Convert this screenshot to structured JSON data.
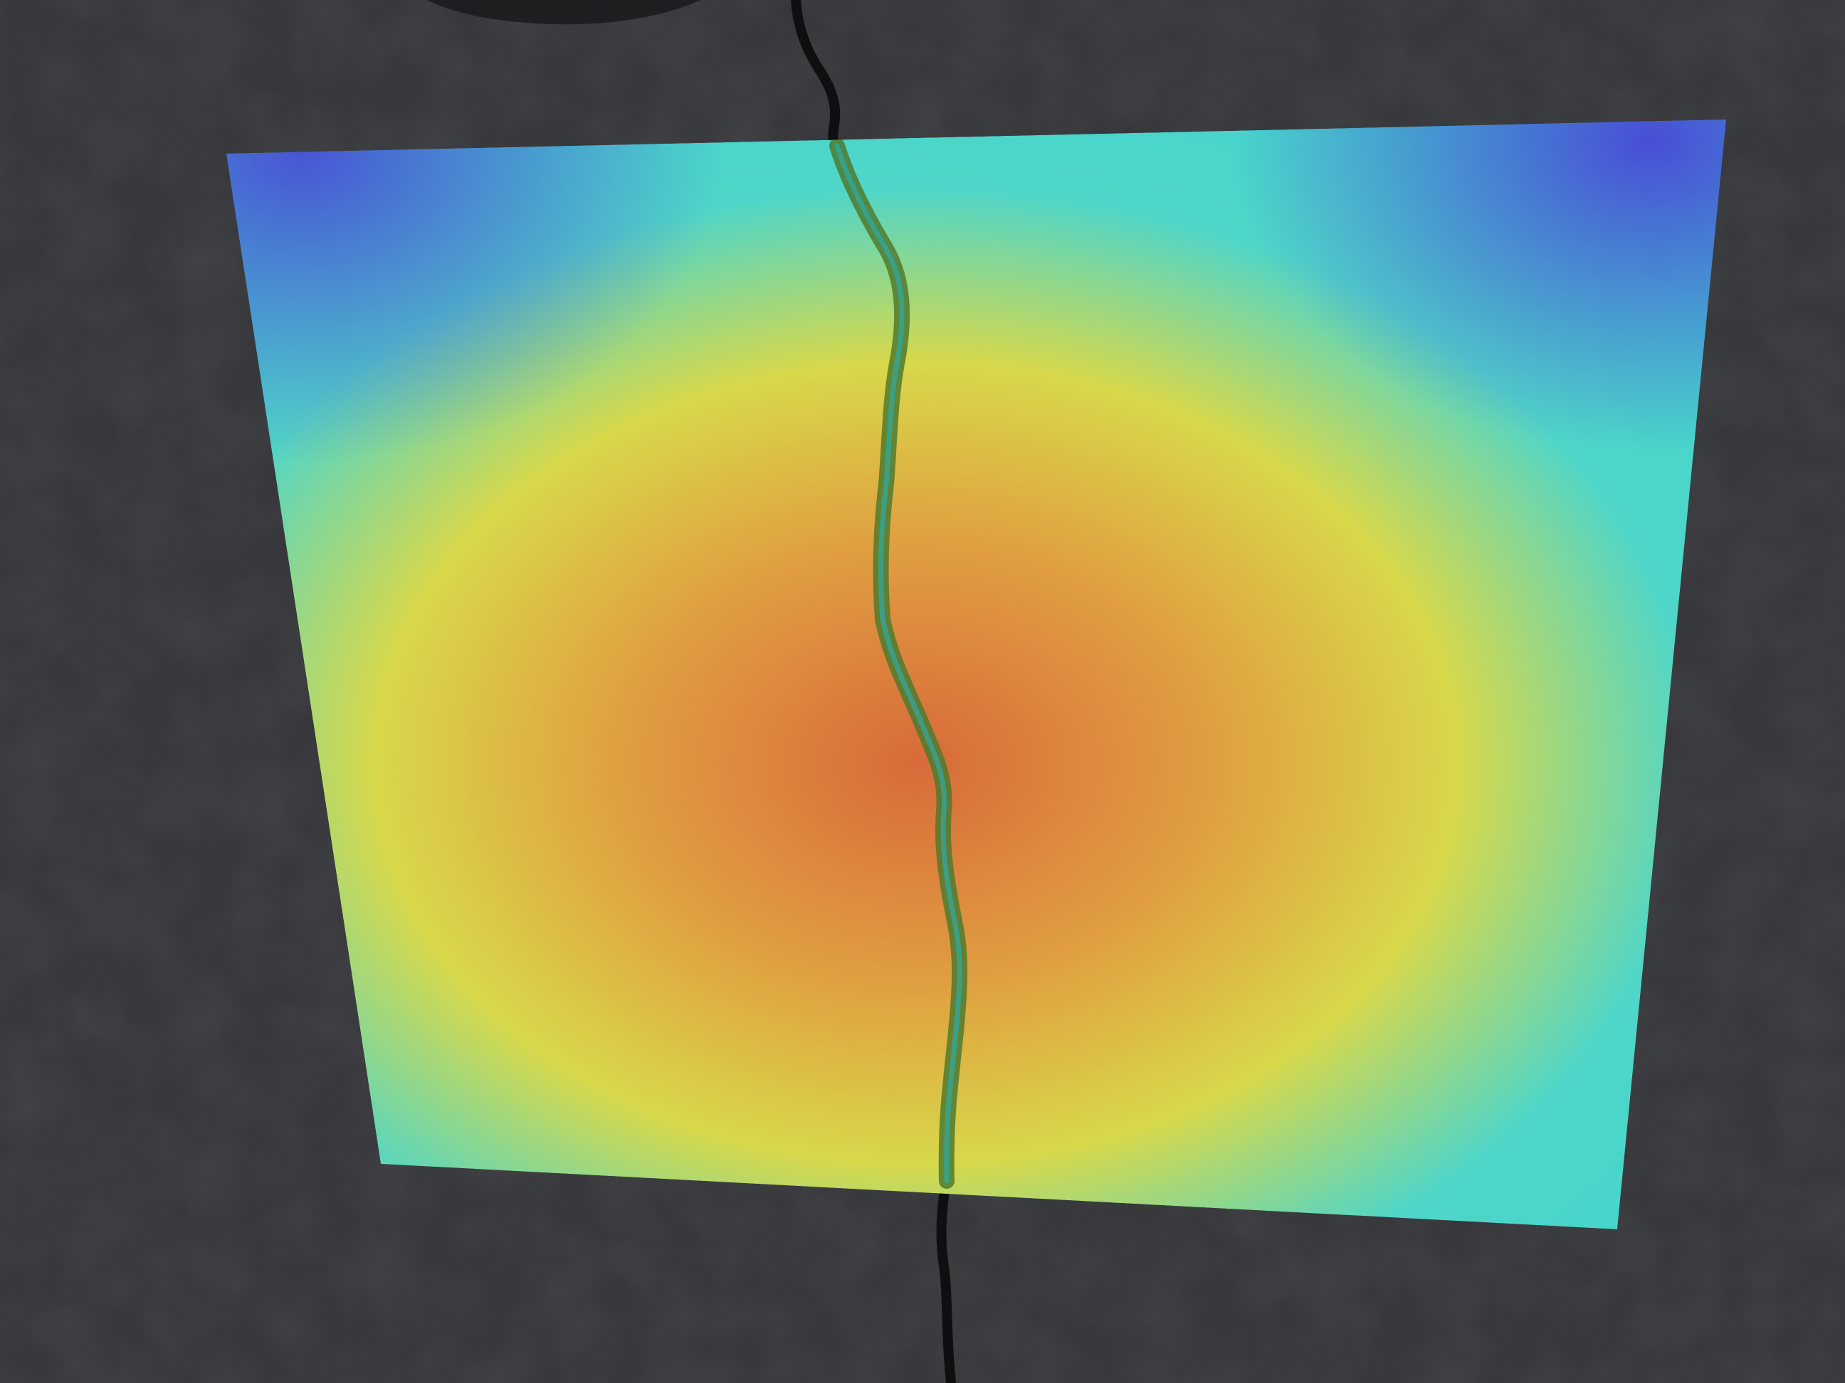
{
  "scene": {
    "surface": "concrete",
    "overlay": "heatmap",
    "feature": "crack"
  },
  "colors": {
    "concrete_base": "#3d3e42",
    "concrete_dark": "#2a2b2e",
    "concrete_light": "#55575c",
    "heat_low": "#4a3fd6",
    "heat_mid_low": "#3fd4d0",
    "heat_mid": "#d8d84a",
    "heat_high": "#e0a040",
    "heat_peak": "#d86a3a",
    "crack": "#0e0f10",
    "crack_on_heat": "#5a7a2a"
  }
}
